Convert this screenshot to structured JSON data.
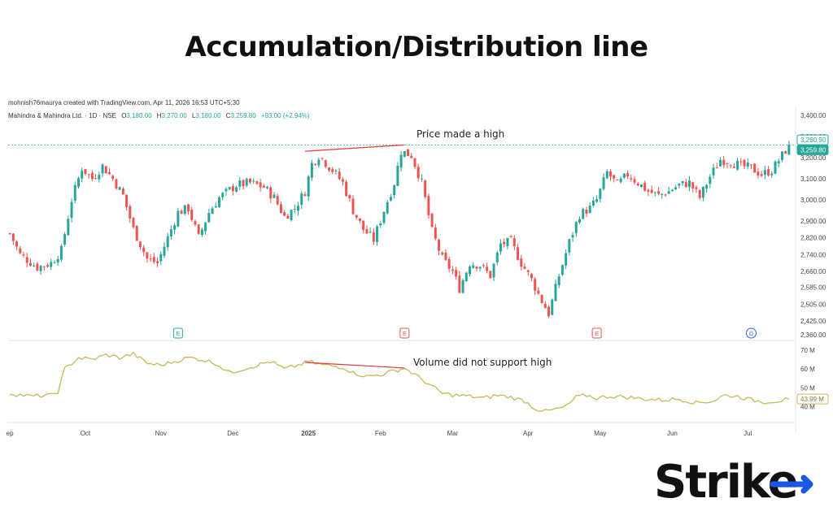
{
  "page": {
    "title": "Accumulation/Distribution line"
  },
  "brand": {
    "logo_text": "Strike",
    "logo_accent": "#1a56e8"
  },
  "chart_header": {
    "created_line": "mohnish76maurya created with TradingView.com, Apr 11, 2026 16:53 UTC+5:30",
    "symbol_line": "Mahindra & Mahindra Ltd. · 1D · NSE",
    "ohlc": {
      "open_label": "O",
      "open": "3,180.00",
      "high_label": "H",
      "high": "3,270.00",
      "low_label": "L",
      "low": "3,180.00",
      "close_label": "C",
      "close": "3,259.80",
      "change": "+93.00 (+2.94%)"
    }
  },
  "annotations": {
    "price_note": "Price made a high",
    "volume_note": "Volume did not support high"
  },
  "colors": {
    "up": "#26a69a",
    "down": "#ef5350",
    "ad_line": "#c9b85a",
    "annotation": "#e53935",
    "price_tag": "#26a69a"
  },
  "chart_data": [
    {
      "type": "candlestick",
      "ylim": [
        2360,
        3400
      ],
      "price_axis_ticks": [
        "3,400.00",
        "3,300.00",
        "3,200.00",
        "3,100.00",
        "3,000.00",
        "2,900.00",
        "2,820.00",
        "2,740.00",
        "2,660.00",
        "2,585.00",
        "2,505.00",
        "2,425.00",
        "2,360.00"
      ],
      "price_tick_values": [
        3400,
        3300,
        3200,
        3100,
        3000,
        2900,
        2820,
        2740,
        2660,
        2585,
        2505,
        2425,
        2360
      ],
      "last_price_tags": [
        "3,260.90",
        "3,259.80"
      ],
      "last_price_values": [
        3260.9,
        3259.8
      ],
      "x_labels": [
        "ep",
        "Oct",
        "Nov",
        "Dec",
        "2025",
        "Feb",
        "Mar",
        "Apr",
        "May",
        "Jun",
        "Jul"
      ],
      "x_label_index": [
        0,
        22,
        44,
        65,
        87,
        108,
        129,
        151,
        172,
        193,
        215
      ],
      "event_markers": [
        {
          "label": "E",
          "index": 49,
          "kind": "earnings-up"
        },
        {
          "label": "E",
          "index": 115,
          "kind": "earnings-down"
        },
        {
          "label": "E",
          "index": 171,
          "kind": "earnings-down"
        },
        {
          "label": "D",
          "index": 216,
          "kind": "dividend"
        }
      ],
      "anchors": [
        [
          0,
          2840
        ],
        [
          3,
          2740
        ],
        [
          8,
          2680
        ],
        [
          12,
          2700
        ],
        [
          15,
          2760
        ],
        [
          18,
          3000
        ],
        [
          21,
          3150
        ],
        [
          24,
          3100
        ],
        [
          27,
          3160
        ],
        [
          30,
          3100
        ],
        [
          33,
          3020
        ],
        [
          36,
          2860
        ],
        [
          40,
          2720
        ],
        [
          43,
          2700
        ],
        [
          46,
          2820
        ],
        [
          49,
          2940
        ],
        [
          52,
          2960
        ],
        [
          55,
          2820
        ],
        [
          58,
          2940
        ],
        [
          61,
          3010
        ],
        [
          66,
          3070
        ],
        [
          70,
          3080
        ],
        [
          74,
          3060
        ],
        [
          77,
          3010
        ],
        [
          80,
          2920
        ],
        [
          83,
          2960
        ],
        [
          86,
          3040
        ],
        [
          88,
          3170
        ],
        [
          90,
          3210
        ],
        [
          94,
          3140
        ],
        [
          97,
          3080
        ],
        [
          100,
          2950
        ],
        [
          103,
          2860
        ],
        [
          106,
          2810
        ],
        [
          109,
          2950
        ],
        [
          112,
          3080
        ],
        [
          114,
          3230
        ],
        [
          117,
          3210
        ],
        [
          120,
          3080
        ],
        [
          123,
          2850
        ],
        [
          126,
          2720
        ],
        [
          129,
          2660
        ],
        [
          131,
          2580
        ],
        [
          134,
          2700
        ],
        [
          137,
          2690
        ],
        [
          140,
          2640
        ],
        [
          143,
          2790
        ],
        [
          146,
          2800
        ],
        [
          149,
          2700
        ],
        [
          152,
          2620
        ],
        [
          155,
          2520
        ],
        [
          157,
          2460
        ],
        [
          160,
          2640
        ],
        [
          163,
          2800
        ],
        [
          166,
          2930
        ],
        [
          169,
          2960
        ],
        [
          171,
          3000
        ],
        [
          174,
          3130
        ],
        [
          177,
          3070
        ],
        [
          180,
          3120
        ],
        [
          183,
          3080
        ],
        [
          186,
          3040
        ],
        [
          189,
          3020
        ],
        [
          192,
          3040
        ],
        [
          195,
          3070
        ],
        [
          198,
          3080
        ],
        [
          201,
          3010
        ],
        [
          204,
          3110
        ],
        [
          207,
          3190
        ],
        [
          210,
          3180
        ],
        [
          213,
          3160
        ],
        [
          216,
          3150
        ],
        [
          219,
          3120
        ],
        [
          222,
          3140
        ],
        [
          225,
          3210
        ],
        [
          227,
          3259.8
        ]
      ],
      "price_annotation_points": [
        [
          86,
          3230
        ],
        [
          115,
          3260
        ]
      ]
    },
    {
      "type": "line",
      "name": "Accumulation/Distribution",
      "ylim": [
        35000000,
        73000000
      ],
      "axis_ticks": [
        "70 M",
        "60 M",
        "50 M",
        "40 M"
      ],
      "axis_tick_values": [
        70000000,
        60000000,
        50000000,
        40000000
      ],
      "last_value_tag": "43.99 M",
      "last_value": 43990000,
      "anchors": [
        [
          0,
          47000000
        ],
        [
          6,
          45500000
        ],
        [
          12,
          46000000
        ],
        [
          14,
          48000000
        ],
        [
          16,
          60000000
        ],
        [
          20,
          66000000
        ],
        [
          24,
          65000000
        ],
        [
          28,
          67500000
        ],
        [
          32,
          66000000
        ],
        [
          36,
          68000000
        ],
        [
          40,
          63000000
        ],
        [
          44,
          62000000
        ],
        [
          48,
          64000000
        ],
        [
          52,
          66000000
        ],
        [
          56,
          65000000
        ],
        [
          60,
          63000000
        ],
        [
          64,
          58000000
        ],
        [
          68,
          60000000
        ],
        [
          72,
          62000000
        ],
        [
          76,
          64000000
        ],
        [
          80,
          60000000
        ],
        [
          84,
          62000000
        ],
        [
          87,
          64000000
        ],
        [
          90,
          62500000
        ],
        [
          94,
          61500000
        ],
        [
          97,
          61000000
        ],
        [
          100,
          58000000
        ],
        [
          104,
          56000000
        ],
        [
          108,
          57000000
        ],
        [
          112,
          59000000
        ],
        [
          115,
          60500000
        ],
        [
          118,
          57000000
        ],
        [
          122,
          52000000
        ],
        [
          126,
          47000000
        ],
        [
          130,
          46000000
        ],
        [
          134,
          45500000
        ],
        [
          138,
          44500000
        ],
        [
          142,
          46000000
        ],
        [
          146,
          45000000
        ],
        [
          150,
          43000000
        ],
        [
          153,
          39000000
        ],
        [
          156,
          37500000
        ],
        [
          159,
          38500000
        ],
        [
          162,
          40000000
        ],
        [
          165,
          45000000
        ],
        [
          168,
          46000000
        ],
        [
          171,
          44500000
        ],
        [
          175,
          45500000
        ],
        [
          180,
          45000000
        ],
        [
          185,
          44000000
        ],
        [
          190,
          43500000
        ],
        [
          195,
          44000000
        ],
        [
          200,
          42000000
        ],
        [
          205,
          43000000
        ],
        [
          208,
          46000000
        ],
        [
          212,
          45500000
        ],
        [
          216,
          43500000
        ],
        [
          220,
          42500000
        ],
        [
          224,
          43000000
        ],
        [
          227,
          43990000
        ]
      ],
      "volume_annotation_points": [
        [
          86,
          63500000
        ],
        [
          115,
          60500000
        ]
      ]
    }
  ]
}
